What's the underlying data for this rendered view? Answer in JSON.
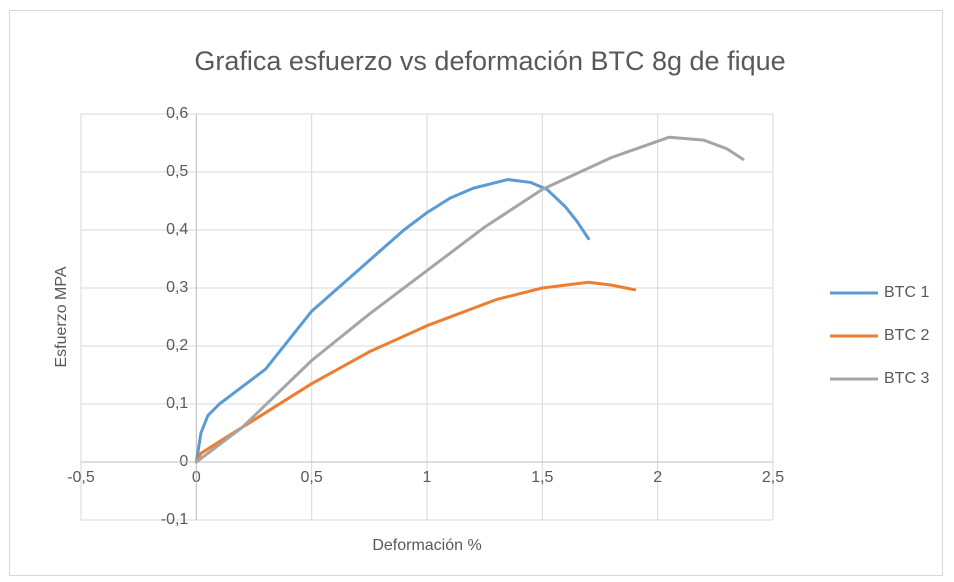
{
  "chart_data": {
    "type": "line",
    "title": "Grafica esfuerzo vs deformación BTC 8g de fique",
    "xlabel": "Deformación %",
    "ylabel": "Esfuerzo MPA",
    "xlim": [
      -0.5,
      2.5
    ],
    "xticks": [
      {
        "value": -0.5,
        "label": "-0,5"
      },
      0,
      {
        "value": 0.5,
        "label": "0,5"
      },
      1,
      {
        "value": 1.5,
        "label": "1,5"
      },
      2,
      {
        "value": 2.5,
        "label": "2,5"
      }
    ],
    "ylim": [
      -0.1,
      0.6
    ],
    "yticks": [
      {
        "value": -0.1,
        "label": "-0,1"
      },
      0,
      {
        "value": 0.1,
        "label": "0,1"
      },
      {
        "value": 0.2,
        "label": "0,2"
      },
      {
        "value": 0.3,
        "label": "0,3"
      },
      {
        "value": 0.4,
        "label": "0,4"
      },
      {
        "value": 0.5,
        "label": "0,5"
      },
      {
        "value": 0.6,
        "label": "0,6"
      }
    ],
    "grid": true,
    "legend": "right",
    "series": [
      {
        "name": "BTC 1",
        "color": "#5b9bd5",
        "x": [
          0,
          0.02,
          0.05,
          0.1,
          0.2,
          0.3,
          0.5,
          0.7,
          0.9,
          1.0,
          1.1,
          1.2,
          1.35,
          1.45,
          1.52,
          1.6,
          1.65,
          1.7
        ],
        "values": [
          0,
          0.05,
          0.08,
          0.1,
          0.13,
          0.16,
          0.26,
          0.33,
          0.4,
          0.43,
          0.455,
          0.472,
          0.487,
          0.482,
          0.47,
          0.44,
          0.415,
          0.385
        ]
      },
      {
        "name": "BTC 2",
        "color": "#ed7d31",
        "x": [
          0,
          0.02,
          0.1,
          0.3,
          0.5,
          0.75,
          1.0,
          1.3,
          1.5,
          1.7,
          1.8,
          1.9
        ],
        "values": [
          0,
          0.015,
          0.035,
          0.085,
          0.135,
          0.19,
          0.235,
          0.28,
          0.3,
          0.31,
          0.305,
          0.297
        ]
      },
      {
        "name": "BTC 3",
        "color": "#a5a5a5",
        "x": [
          0,
          0.2,
          0.5,
          0.75,
          1.0,
          1.25,
          1.5,
          1.8,
          2.05,
          2.2,
          2.3,
          2.37
        ],
        "values": [
          0,
          0.06,
          0.175,
          0.255,
          0.33,
          0.405,
          0.47,
          0.525,
          0.56,
          0.555,
          0.54,
          0.522
        ]
      }
    ]
  }
}
